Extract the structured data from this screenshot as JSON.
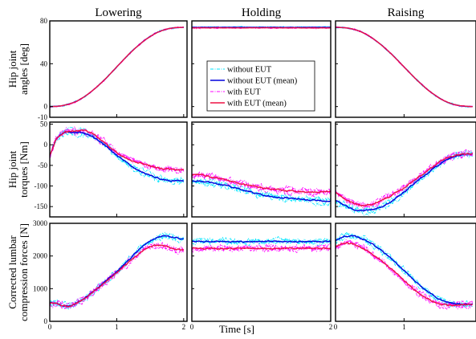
{
  "chart_data": {
    "type": "line",
    "columns": [
      "Lowering",
      "Holding",
      "Raising"
    ],
    "xlabel": "Time [s]",
    "x_ticks": [
      [
        {
          "v": 0,
          "label": "0"
        },
        {
          "v": 1,
          "label": "1"
        },
        {
          "v": 2,
          "label": "2"
        }
      ],
      [
        {
          "v": 0,
          "label": "0"
        },
        {
          "v": 2,
          "label": "2"
        }
      ],
      [
        {
          "v": 0,
          "label": "0"
        },
        {
          "v": 1,
          "label": "1"
        }
      ]
    ],
    "xlim": [
      [
        0,
        2.05
      ],
      [
        0,
        2.0
      ],
      [
        0,
        2.05
      ]
    ],
    "legend": {
      "placement": "center (Holding / hip angle panel)",
      "entries": [
        {
          "name": "without EUT",
          "color": "#00e5ff",
          "style": "dash-dot"
        },
        {
          "name": "without EUT (mean)",
          "color": "#0000dd",
          "style": "solid"
        },
        {
          "name": "with EUT",
          "color": "#ff00ff",
          "style": "dash-dot"
        },
        {
          "name": "with EUT (mean)",
          "color": "#ee1144",
          "style": "solid"
        }
      ]
    },
    "rows": [
      {
        "ylabel": [
          "Hip joint",
          "angles [deg]"
        ],
        "ylim": [
          -10,
          80
        ],
        "yticks": [
          {
            "v": -10,
            "label": "-10"
          },
          {
            "v": 0,
            "label": "0"
          },
          {
            "v": 40,
            "label": "40"
          },
          {
            "v": 80,
            "label": "80"
          }
        ],
        "panels": [
          {
            "x": [
              0,
              0.2,
              0.4,
              0.6,
              0.8,
              1.0,
              1.2,
              1.4,
              1.6,
              1.8,
              2.0
            ],
            "without_mean": [
              0,
              1,
              5,
              13,
              24,
              37,
              50,
              61,
              69,
              73,
              74
            ],
            "with_mean": [
              0,
              1,
              5,
              13,
              24,
              37,
              50,
              61,
              69,
              73,
              74
            ]
          },
          {
            "x": [
              0,
              0.5,
              1.0,
              1.5,
              2.0
            ],
            "without_mean": [
              74,
              74,
              74,
              74,
              74
            ],
            "with_mean": [
              73.5,
              73.5,
              73.5,
              73.5,
              73.5
            ]
          },
          {
            "x": [
              0,
              0.2,
              0.4,
              0.6,
              0.8,
              1.0,
              1.2,
              1.4,
              1.6,
              1.8,
              2.0
            ],
            "without_mean": [
              74,
              73,
              69,
              61,
              50,
              37,
              24,
              13,
              5,
              1,
              0
            ],
            "with_mean": [
              74,
              73,
              69,
              61,
              50,
              37,
              24,
              13,
              5,
              1,
              0
            ]
          }
        ]
      },
      {
        "ylabel": [
          "Hip joint",
          "torques [Nm]"
        ],
        "ylim": [
          -175,
          55
        ],
        "yticks": [
          {
            "v": 50,
            "label": "50"
          },
          {
            "v": 0,
            "label": "0"
          },
          {
            "v": -50,
            "label": "-50"
          },
          {
            "v": -100,
            "label": "-100"
          },
          {
            "v": -150,
            "label": "-150"
          }
        ],
        "panels": [
          {
            "x": [
              0,
              0.05,
              0.1,
              0.2,
              0.3,
              0.4,
              0.5,
              0.6,
              0.7,
              0.8,
              0.9,
              1.0,
              1.1,
              1.2,
              1.3,
              1.4,
              1.5,
              1.6,
              1.7,
              1.8,
              1.9,
              2.0
            ],
            "without_mean": [
              -25,
              -5,
              15,
              28,
              30,
              30,
              28,
              24,
              14,
              2,
              -12,
              -26,
              -38,
              -50,
              -60,
              -68,
              -74,
              -80,
              -84,
              -86,
              -87,
              -87
            ],
            "with_mean": [
              -25,
              -5,
              15,
              28,
              32,
              34,
              34,
              30,
              20,
              8,
              -6,
              -18,
              -28,
              -36,
              -42,
              -47,
              -52,
              -56,
              -58,
              -59,
              -60,
              -60
            ]
          },
          {
            "x": [
              0,
              0.1,
              0.2,
              0.4,
              0.6,
              0.8,
              1.0,
              1.2,
              1.4,
              1.6,
              1.8,
              2.0
            ],
            "without_mean": [
              -88,
              -88,
              -90,
              -96,
              -104,
              -112,
              -120,
              -126,
              -130,
              -133,
              -135,
              -137
            ],
            "with_mean": [
              -73,
              -73,
              -75,
              -82,
              -90,
              -98,
              -104,
              -108,
              -112,
              -114,
              -114,
              -113
            ]
          },
          {
            "x": [
              0,
              0.1,
              0.2,
              0.3,
              0.4,
              0.5,
              0.6,
              0.7,
              0.8,
              0.9,
              1.0,
              1.1,
              1.2,
              1.3,
              1.4,
              1.5,
              1.6,
              1.7,
              1.8,
              1.9,
              2.0
            ],
            "without_mean": [
              -135,
              -145,
              -152,
              -158,
              -160,
              -158,
              -155,
              -148,
              -140,
              -128,
              -115,
              -100,
              -87,
              -75,
              -62,
              -50,
              -38,
              -30,
              -25,
              -22,
              -22
            ],
            "with_mean": [
              -115,
              -127,
              -136,
              -144,
              -148,
              -146,
              -140,
              -132,
              -124,
              -114,
              -104,
              -92,
              -80,
              -68,
              -56,
              -44,
              -34,
              -28,
              -24,
              -22,
              -22
            ]
          }
        ]
      },
      {
        "ylabel": [
          "Corrected lumbar",
          "compression forces [N]"
        ],
        "ylim": [
          0,
          3000
        ],
        "yticks": [
          {
            "v": 0,
            "label": "0"
          },
          {
            "v": 1000,
            "label": "1000"
          },
          {
            "v": 2000,
            "label": "2000"
          },
          {
            "v": 3000,
            "label": "3000"
          }
        ],
        "panels": [
          {
            "x": [
              0,
              0.1,
              0.2,
              0.3,
              0.4,
              0.5,
              0.6,
              0.7,
              0.8,
              0.9,
              1.0,
              1.1,
              1.2,
              1.3,
              1.4,
              1.5,
              1.6,
              1.7,
              1.8,
              1.9,
              2.0
            ],
            "without_mean": [
              560,
              540,
              480,
              470,
              560,
              680,
              830,
              990,
              1160,
              1340,
              1520,
              1720,
              1920,
              2130,
              2330,
              2470,
              2560,
              2610,
              2600,
              2550,
              2510
            ],
            "with_mean": [
              560,
              540,
              480,
              470,
              560,
              680,
              830,
              990,
              1150,
              1320,
              1490,
              1670,
              1850,
              2020,
              2180,
              2290,
              2330,
              2310,
              2250,
              2200,
              2180
            ]
          },
          {
            "x": [
              0,
              0.4,
              0.8,
              1.2,
              1.6,
              2.0
            ],
            "without_mean": [
              2440,
              2450,
              2440,
              2450,
              2440,
              2440
            ],
            "with_mean": [
              2240,
              2230,
              2240,
              2230,
              2240,
              2230
            ]
          },
          {
            "x": [
              0,
              0.1,
              0.2,
              0.3,
              0.4,
              0.5,
              0.6,
              0.7,
              0.8,
              0.9,
              1.0,
              1.1,
              1.2,
              1.3,
              1.4,
              1.5,
              1.6,
              1.7,
              1.8,
              1.9,
              2.0
            ],
            "without_mean": [
              2470,
              2580,
              2620,
              2590,
              2520,
              2420,
              2280,
              2120,
              1950,
              1760,
              1560,
              1360,
              1160,
              980,
              830,
              700,
              610,
              560,
              530,
              520,
              530
            ],
            "with_mean": [
              2290,
              2370,
              2390,
              2330,
              2230,
              2110,
              1960,
              1800,
              1630,
              1440,
              1250,
              1060,
              890,
              740,
              620,
              540,
              500,
              490,
              500,
              510,
              520
            ]
          }
        ]
      }
    ]
  }
}
